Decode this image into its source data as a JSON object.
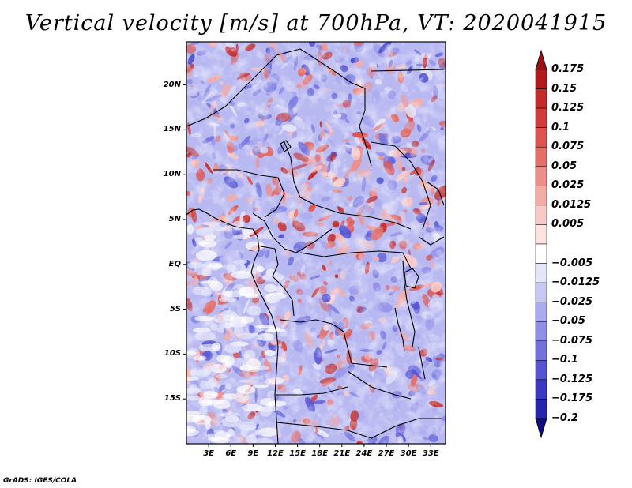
{
  "title": "Vertical velocity [m/s] at 700hPa, VT: 2020041915",
  "footer": "GrADS: IGES/COLA",
  "lat_labels": [
    {
      "text": "20N",
      "lat": 20
    },
    {
      "text": "15N",
      "lat": 15
    },
    {
      "text": "10N",
      "lat": 10
    },
    {
      "text": "5N",
      "lat": 5
    },
    {
      "text": "EQ",
      "lat": 0
    },
    {
      "text": "5S",
      "lat": -5
    },
    {
      "text": "10S",
      "lat": -10
    },
    {
      "text": "15S",
      "lat": -15
    }
  ],
  "lon_labels": [
    {
      "text": "3E",
      "lon": 3
    },
    {
      "text": "6E",
      "lon": 6
    },
    {
      "text": "9E",
      "lon": 9
    },
    {
      "text": "12E",
      "lon": 12
    },
    {
      "text": "15E",
      "lon": 15
    },
    {
      "text": "18E",
      "lon": 18
    },
    {
      "text": "21E",
      "lon": 21
    },
    {
      "text": "24E",
      "lon": 24
    },
    {
      "text": "27E",
      "lon": 27
    },
    {
      "text": "30E",
      "lon": 30
    },
    {
      "text": "33E",
      "lon": 33
    }
  ],
  "colorbar": [
    {
      "label": "0.175",
      "color": "#b01a1a"
    },
    {
      "label": "0.15",
      "color": "#c42a28"
    },
    {
      "label": "0.125",
      "color": "#d23c38"
    },
    {
      "label": "0.1",
      "color": "#dd544e"
    },
    {
      "label": "0.075",
      "color": "#e56f68"
    },
    {
      "label": "0.05",
      "color": "#ed8e88"
    },
    {
      "label": "0.025",
      "color": "#f4aca7"
    },
    {
      "label": "0.0125",
      "color": "#f9c9c5"
    },
    {
      "label": "0.005",
      "color": "#fce3e0"
    },
    {
      "label": "",
      "color": "#ffffff"
    },
    {
      "label": "−0.005",
      "color": "#e4e4fb"
    },
    {
      "label": "−0.0125",
      "color": "#c8c8f5"
    },
    {
      "label": "−0.025",
      "color": "#ababef"
    },
    {
      "label": "−0.05",
      "color": "#8f8fe8"
    },
    {
      "label": "−0.075",
      "color": "#7272df"
    },
    {
      "label": "−0.1",
      "color": "#5454d4"
    },
    {
      "label": "−0.125",
      "color": "#3939c4"
    },
    {
      "label": "−0.175",
      "color": "#2525ae"
    },
    {
      "label": "−0.2",
      "color": "#141494"
    }
  ],
  "colorbar_arrow_top": "#9e0e14",
  "colorbar_arrow_bottom": "#0c0c80",
  "map_extent": {
    "lon_min": 0,
    "lon_max": 35,
    "lat_min": -20,
    "lat_max": 24.8
  }
}
